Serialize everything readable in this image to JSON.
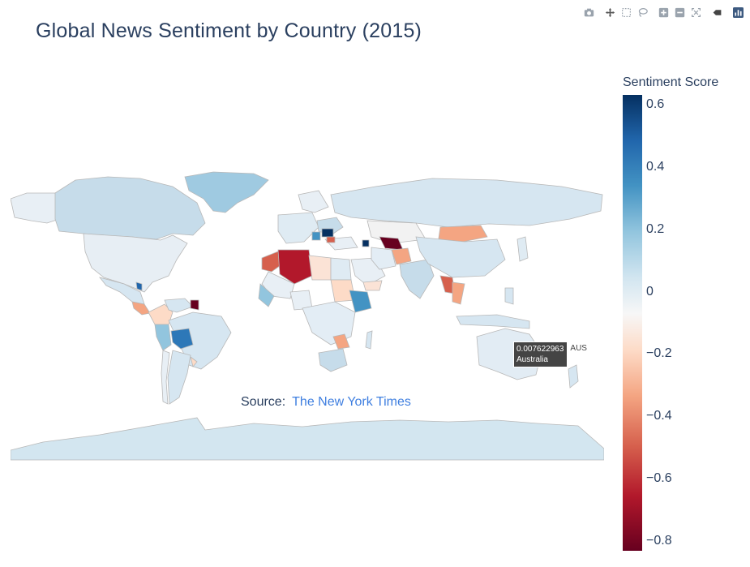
{
  "title": "Global News Sentiment by Country (2015)",
  "colorbar": {
    "title": "Sentiment Score",
    "ticks": [
      "0.6",
      "0.4",
      "0.2",
      "0",
      "−0.2",
      "−0.4",
      "−0.6",
      "−0.8"
    ],
    "range": [
      -0.83,
      0.63
    ],
    "colorscale": [
      "#053061",
      "#2166ac",
      "#4393c3",
      "#92c5de",
      "#d1e5f0",
      "#f7f7f7",
      "#fddbc7",
      "#f4a582",
      "#d6604d",
      "#b2182b",
      "#67001f"
    ]
  },
  "annotation": {
    "prefix": "Source:",
    "link_text": "The New York Times"
  },
  "hover": {
    "value": "0.007622963",
    "location": "Australia",
    "code": "AUS"
  },
  "modebar": {
    "icons": [
      "camera-icon",
      "pan-icon",
      "box-select-icon",
      "lasso-icon",
      "zoom-in-icon",
      "zoom-out-icon",
      "reset-icon",
      "autoscale-icon",
      "plotly-logo-icon"
    ]
  },
  "chart_data": {
    "type": "choropleth",
    "title": "Global News Sentiment by Country (2015)",
    "colorbar_title": "Sentiment Score",
    "zmin": -0.83,
    "zmax": 0.63,
    "locations": [
      {
        "code": "AUS",
        "name": "Australia",
        "value": 0.007622963
      }
    ]
  }
}
